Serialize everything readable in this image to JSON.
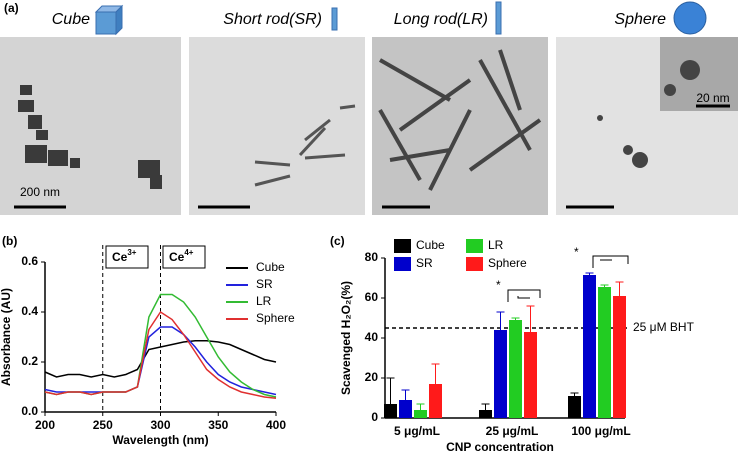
{
  "panel_a": {
    "label": "(a)",
    "titles": [
      "Cube",
      "Short rod(SR)",
      "Long rod(LR)",
      "Sphere"
    ],
    "scale_labels": [
      "200 nm",
      "20 nm"
    ]
  },
  "chart_data": [
    {
      "type": "line",
      "panel": "(b)",
      "xlabel": "Wavelength (nm)",
      "ylabel": "Absorbance (AU)",
      "x": [
        200,
        210,
        220,
        230,
        240,
        250,
        260,
        270,
        280,
        290,
        300,
        310,
        320,
        330,
        340,
        350,
        360,
        370,
        380,
        390,
        400
      ],
      "xlim": [
        200,
        400
      ],
      "xticks": [
        200,
        250,
        300,
        350,
        400
      ],
      "ylim": [
        0,
        0.6
      ],
      "yticks": [
        {
          "value": 0,
          "label": "0.0"
        },
        0.2,
        0.4,
        0.6
      ],
      "vlines": [
        250,
        300
      ],
      "annotations": [
        {
          "base": "Ce",
          "sup": "3+"
        },
        {
          "base": "Ce",
          "sup": "4+"
        }
      ],
      "series": [
        {
          "name": "Cube",
          "color": "#000000",
          "values": [
            0.16,
            0.14,
            0.15,
            0.15,
            0.14,
            0.15,
            0.14,
            0.15,
            0.17,
            0.25,
            0.26,
            0.27,
            0.28,
            0.285,
            0.285,
            0.28,
            0.27,
            0.25,
            0.23,
            0.21,
            0.2
          ]
        },
        {
          "name": "SR",
          "color": "#2222dd",
          "values": [
            0.09,
            0.08,
            0.08,
            0.08,
            0.08,
            0.08,
            0.08,
            0.08,
            0.1,
            0.3,
            0.34,
            0.34,
            0.31,
            0.26,
            0.2,
            0.15,
            0.12,
            0.1,
            0.09,
            0.08,
            0.07
          ]
        },
        {
          "name": "LR",
          "color": "#33bb33",
          "values": [
            0.08,
            0.07,
            0.08,
            0.08,
            0.07,
            0.08,
            0.08,
            0.08,
            0.1,
            0.38,
            0.47,
            0.47,
            0.44,
            0.38,
            0.3,
            0.22,
            0.16,
            0.12,
            0.09,
            0.07,
            0.06
          ]
        },
        {
          "name": "Sphere",
          "color": "#e03030",
          "values": [
            0.08,
            0.07,
            0.08,
            0.08,
            0.07,
            0.08,
            0.08,
            0.08,
            0.1,
            0.33,
            0.4,
            0.37,
            0.31,
            0.24,
            0.17,
            0.13,
            0.1,
            0.08,
            0.07,
            0.06,
            0.055
          ]
        }
      ]
    },
    {
      "type": "bar",
      "panel": "(c)",
      "xlabel": "CNP concentration",
      "ylabel": "Scavenged H₂O₂(%)",
      "categories": [
        "5 μg/mL",
        "25 μg/mL",
        "100 μg/mL"
      ],
      "ylim": [
        0,
        80
      ],
      "yticks": [
        0,
        20,
        40,
        60,
        80
      ],
      "hline": {
        "value": 45,
        "label": "25 μM BHT"
      },
      "stars": [
        "*",
        "*"
      ],
      "series": [
        {
          "name": "Cube",
          "color": "#000000",
          "values": [
            7,
            4,
            11
          ],
          "errors": [
            13,
            3,
            1.5
          ]
        },
        {
          "name": "SR",
          "color": "#0000cc",
          "values": [
            9,
            44,
            71.5
          ],
          "errors": [
            5,
            9,
            1
          ]
        },
        {
          "name": "LR",
          "color": "#22cc22",
          "values": [
            4,
            49,
            65.5
          ],
          "errors": [
            3,
            1,
            1
          ]
        },
        {
          "name": "Sphere",
          "color": "#ff1a1a",
          "values": [
            17,
            43,
            61
          ],
          "errors": [
            10,
            13,
            7
          ]
        }
      ]
    }
  ]
}
